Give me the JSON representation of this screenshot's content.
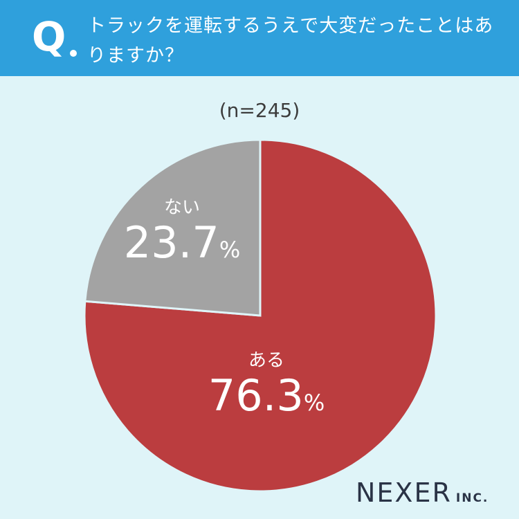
{
  "question": {
    "mark": "Q",
    "text": "トラックを運転するうえで大変だったことはありますか？"
  },
  "sample_size": "(n=245)",
  "chart_data": {
    "type": "pie",
    "categories": [
      "ある",
      "ない"
    ],
    "values": [
      76.3,
      23.7
    ],
    "value_labels": [
      "76.3",
      "23.7"
    ],
    "unit": "%",
    "colors": [
      "#bb3d3f",
      "#a3a3a3"
    ],
    "slice_border_color": "#dff4f8",
    "start_angle_deg": 0,
    "direction": "clockwise"
  },
  "logo": {
    "main": "NEXER",
    "sub": "INC."
  },
  "colors": {
    "header_bg": "#2fa0dc",
    "page_bg": "#dff4f8",
    "text_dark": "#3c3c3c",
    "logo": "#2a3346"
  }
}
